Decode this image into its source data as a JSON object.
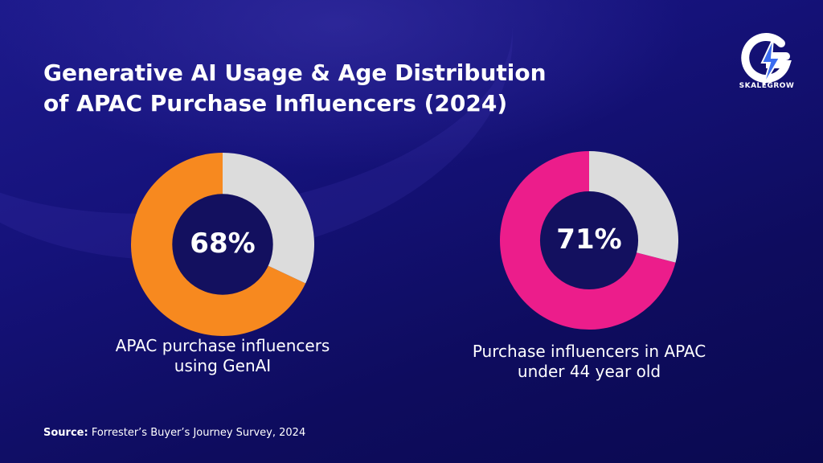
{
  "title": {
    "line1": "Generative AI Usage & Age Distribution",
    "line2": "of APAC Purchase Influencers (2024)"
  },
  "logo": {
    "text": "SKALEGROW",
    "icon": "lightning-g-icon"
  },
  "colors": {
    "background": "#15127a",
    "remainder": "#dcdcdc",
    "hole": "#13105f",
    "genai": "#f7891f",
    "age": "#ec1d8b"
  },
  "chart_data": [
    {
      "type": "pie",
      "value": 68,
      "value_label": "68%",
      "caption": [
        "APAC purchase influencers",
        "using GenAI"
      ]
    },
    {
      "type": "pie",
      "value": 71,
      "value_label": "71%",
      "caption": [
        "Purchase influencers in APAC",
        "under 44 year old"
      ]
    }
  ],
  "source": {
    "label": "Source:",
    "text": " Forrester’s Buyer’s Journey Survey, 2024"
  }
}
